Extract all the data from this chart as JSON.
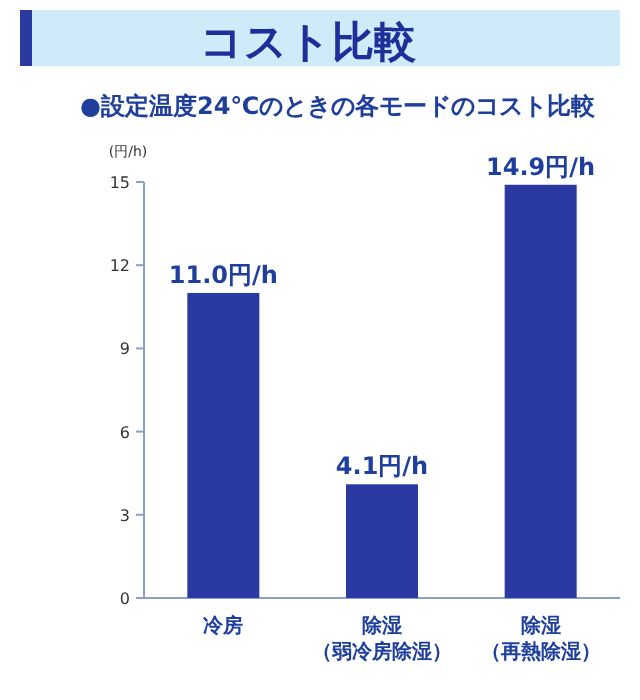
{
  "chart_data": {
    "type": "bar",
    "title": "コスト比較",
    "subtitle": "●設定温度24℃のときの各モードのコスト比較",
    "ylabel": "(円/h)",
    "categories": [
      "冷房",
      "除湿（弱冷房除湿）",
      "除湿（再熱除湿）"
    ],
    "values": [
      11.0,
      4.1,
      14.9
    ],
    "color": "#2b3aa3",
    "value_labels": [
      "11.0円/h",
      "4.1円/h",
      "14.9円/h"
    ],
    "ylim": [
      0,
      15
    ],
    "yticks": [
      0,
      3,
      6,
      9,
      12,
      15
    ],
    "grid": false
  }
}
